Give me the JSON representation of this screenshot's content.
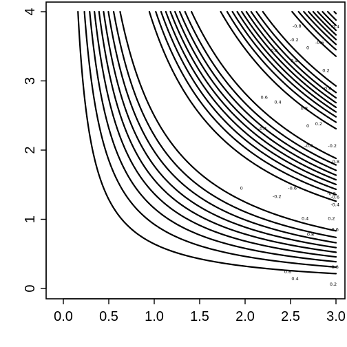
{
  "chart_data": {
    "type": "contour",
    "function": "cos(x*y)",
    "xlim": [
      0,
      3
    ],
    "ylim": [
      0,
      4
    ],
    "x_ticks": [
      0,
      0.5,
      1,
      1.5,
      2,
      2.5,
      3
    ],
    "x_tick_labels": [
      "0.0",
      "0.5",
      "1.0",
      "1.5",
      "2.0",
      "2.5",
      "3.0"
    ],
    "y_ticks": [
      0,
      1,
      2,
      3,
      4
    ],
    "y_tick_labels": [
      "0",
      "1",
      "2",
      "3",
      "4"
    ],
    "levels": [
      -0.8,
      -0.6,
      -0.4,
      -0.2,
      0,
      0.2,
      0.4,
      0.6,
      0.8
    ],
    "x_min": 0.05,
    "contour_labels": [
      {
        "text": "0.2",
        "x": 2.97,
        "y": 0.06
      },
      {
        "text": "0.4",
        "x": 2.55,
        "y": 0.14
      },
      {
        "text": "0.6",
        "x": 2.47,
        "y": 0.24
      },
      {
        "text": "0.8",
        "x": 2.99,
        "y": 0.31
      },
      {
        "text": "0.8",
        "x": 2.72,
        "y": 0.78
      },
      {
        "text": "0.6",
        "x": 2.99,
        "y": 0.85
      },
      {
        "text": "0.4",
        "x": 2.66,
        "y": 1.01
      },
      {
        "text": "0.2",
        "x": 2.95,
        "y": 1.01
      },
      {
        "text": "-0.4",
        "x": 2.99,
        "y": 1.21
      },
      {
        "text": "-0.6",
        "x": 2.99,
        "y": 1.32
      },
      {
        "text": "-0.2",
        "x": 2.35,
        "y": 1.33
      },
      {
        "text": "-0.6",
        "x": 2.52,
        "y": 1.45
      },
      {
        "text": "-0.8",
        "x": 2.95,
        "y": 1.37
      },
      {
        "text": "0",
        "x": 1.96,
        "y": 1.45
      },
      {
        "text": "-0.8",
        "x": 2.99,
        "y": 1.83
      },
      {
        "text": "-0.6",
        "x": 2.7,
        "y": 2.06
      },
      {
        "text": "-0.2",
        "x": 2.96,
        "y": 2.06
      },
      {
        "text": "-0.4",
        "x": 2.19,
        "y": 2.31
      },
      {
        "text": "0",
        "x": 2.69,
        "y": 2.35
      },
      {
        "text": "0.2",
        "x": 2.81,
        "y": 2.38
      },
      {
        "text": "0.4",
        "x": 2.36,
        "y": 2.69
      },
      {
        "text": "0.6",
        "x": 2.21,
        "y": 2.76
      },
      {
        "text": "0.8",
        "x": 2.65,
        "y": 2.6
      },
      {
        "text": "0.8",
        "x": 2.91,
        "y": 2.89
      },
      {
        "text": "0.6",
        "x": 2.32,
        "y": 3.44
      },
      {
        "text": "0.4",
        "x": 2.54,
        "y": 3.29
      },
      {
        "text": "0.2",
        "x": 2.89,
        "y": 3.15
      },
      {
        "text": "0",
        "x": 2.69,
        "y": 3.48
      },
      {
        "text": "-0.2",
        "x": 2.54,
        "y": 3.59
      },
      {
        "text": "-0.6",
        "x": 2.82,
        "y": 3.55
      },
      {
        "text": "-0.4",
        "x": 2.99,
        "y": 3.78
      },
      {
        "text": "-0.8",
        "x": 2.57,
        "y": 3.79
      }
    ]
  }
}
